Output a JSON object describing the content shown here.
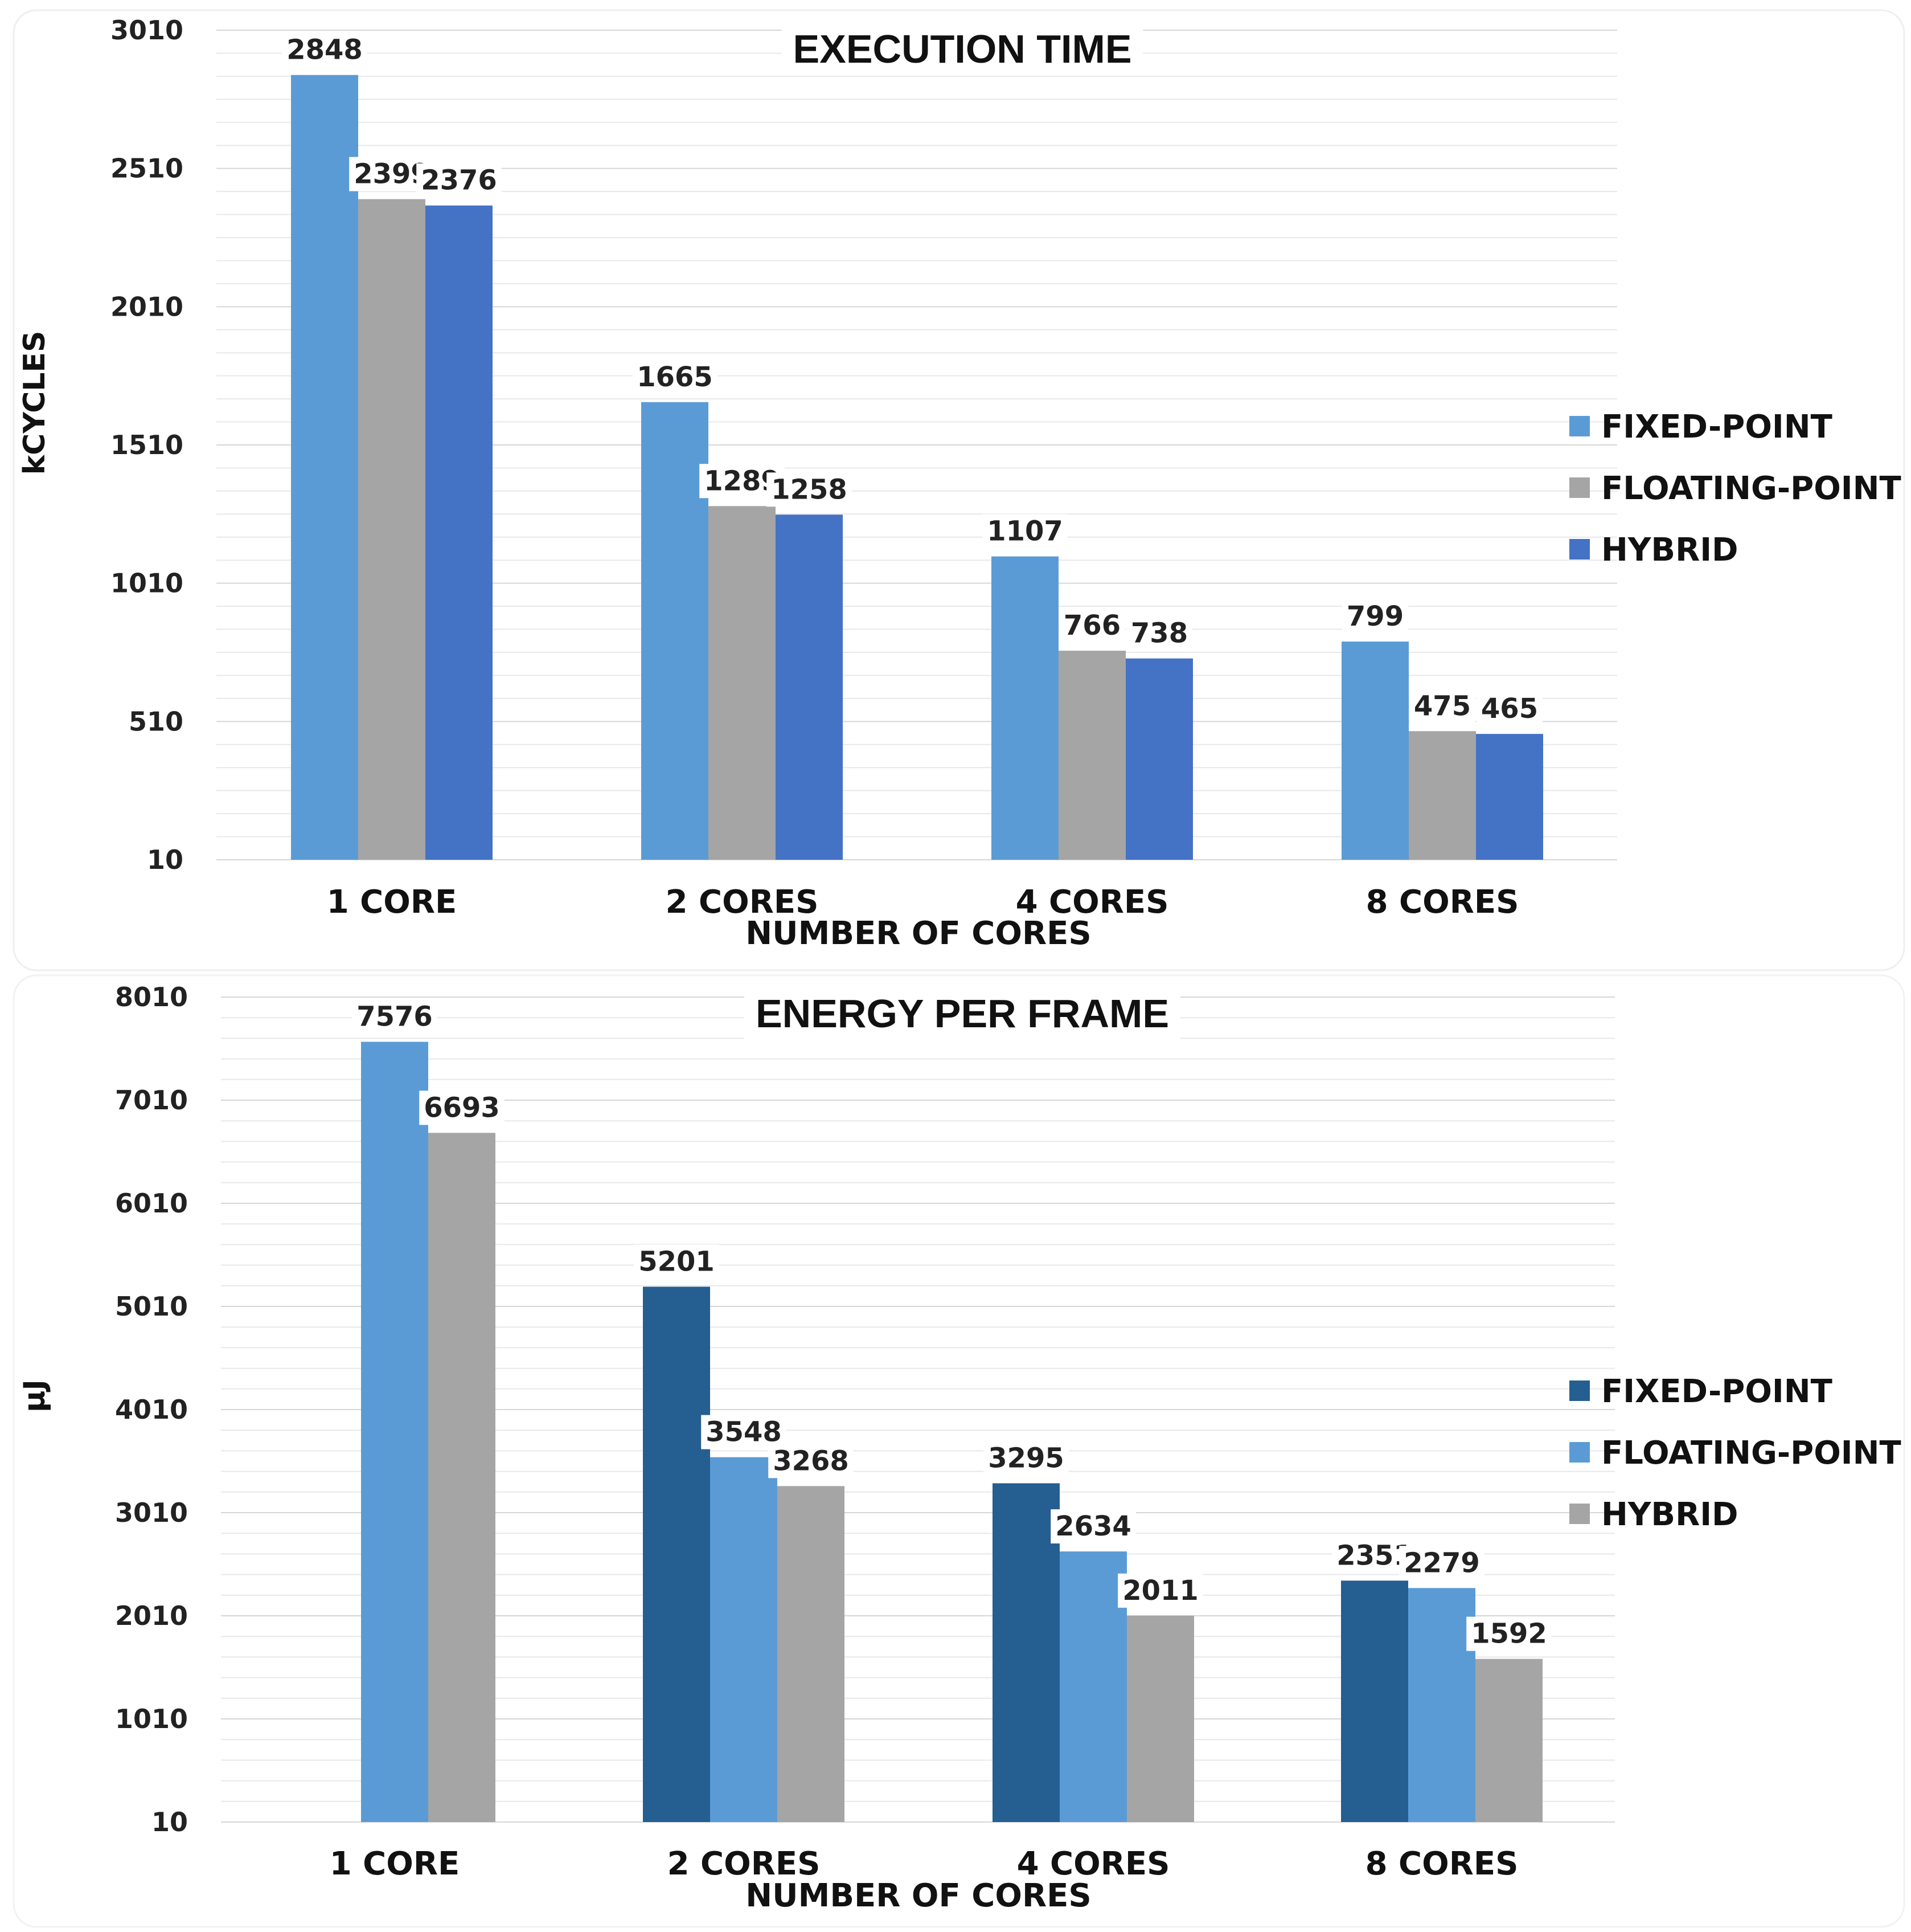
{
  "chart_data": [
    {
      "type": "bar",
      "title": "EXECUTION TIME",
      "xlabel": "NUMBER OF CORES",
      "ylabel": "kCYCLES",
      "ylim": [
        10,
        3010
      ],
      "yticks": [
        "10",
        "510",
        "1010",
        "1510",
        "2010",
        "2510",
        "3010"
      ],
      "categories": [
        "1 CORE",
        "2 CORES",
        "4 CORES",
        "8 CORES"
      ],
      "series": [
        {
          "name": "FIXED-POINT",
          "color": "#5B9BD5",
          "values": [
            2848,
            1665,
            1107,
            799
          ]
        },
        {
          "name": "FLOATING-POINT",
          "color": "#A5A5A5",
          "values": [
            2399,
            1289,
            766,
            475
          ]
        },
        {
          "name": "HYBRID",
          "color": "#4472C4",
          "values": [
            2376,
            1258,
            738,
            465
          ]
        }
      ],
      "legend": "right",
      "grid": true
    },
    {
      "type": "bar",
      "title": "ENERGY PER FRAME",
      "xlabel": "NUMBER OF CORES",
      "ylabel": "μJ",
      "ylim": [
        10,
        8010
      ],
      "yticks": [
        "10",
        "1010",
        "2010",
        "3010",
        "4010",
        "5010",
        "6010",
        "7010",
        "8010"
      ],
      "categories": [
        "1 CORE",
        "2 CORES",
        "4 CORES",
        "8 CORES"
      ],
      "series": [
        {
          "name": "FIXED-POINT",
          "color": "#255E91",
          "values": [
            null,
            5201,
            3295,
            2351
          ]
        },
        {
          "name": "FLOATING-POINT",
          "color": "#5B9BD5",
          "values": [
            7576,
            3548,
            2634,
            2279
          ]
        },
        {
          "name": "HYBRID",
          "color": "#A5A5A5",
          "values": [
            6693,
            3268,
            2011,
            1592
          ]
        }
      ],
      "legend": "right",
      "grid": true
    }
  ]
}
